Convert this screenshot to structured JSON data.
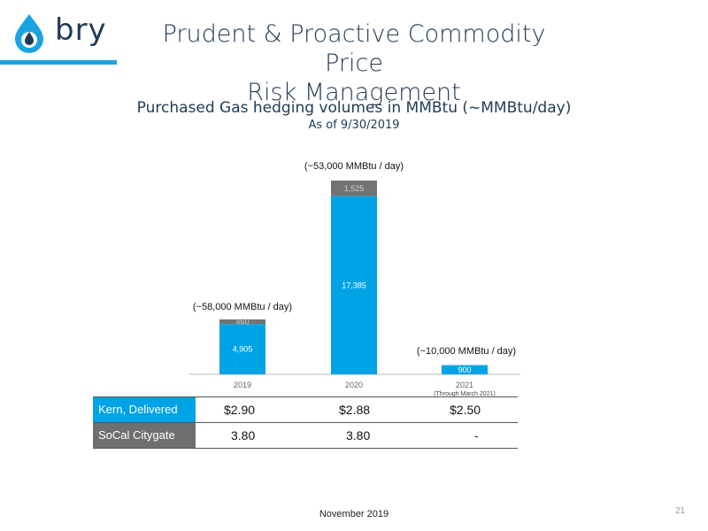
{
  "brand": {
    "logo_text": "bry",
    "accent": "#1aa3e0",
    "dark": "#1f3b57"
  },
  "title_line1": "Prudent & Proactive Commodity Price",
  "title_line2": "Risk Management",
  "chart_data": {
    "type": "bar",
    "stacked": true,
    "title": "Purchased Gas hedging volumes in MMBtu (~MMBtu/day)",
    "subtitle": "As of 9/30/2019",
    "categories": [
      "2019",
      "2020",
      "2021"
    ],
    "category_notes": [
      "",
      "",
      "(Through March 2021)"
    ],
    "series": [
      {
        "values": [
          4905,
          17385,
          900
        ],
        "color": "#00a3e6"
      },
      {
        "values": [
          460,
          1525,
          0
        ],
        "color": "#737373"
      }
    ],
    "annotations": [
      "(~58,000 MMBtu  / day)",
      "(~53,000 MMBtu / day)",
      "(~10,000 MMBtu / day)"
    ]
  },
  "table": {
    "rows": [
      {
        "label": "Kern, Delivered",
        "color": "#00a3e6",
        "values": [
          "$2.90",
          "$2.88",
          "$2.50"
        ]
      },
      {
        "label": "SoCal Citygate",
        "color": "#6f6f6f",
        "values": [
          "3.80",
          "3.80",
          "-"
        ]
      }
    ]
  },
  "footer": "November 2019",
  "page_number": "21"
}
